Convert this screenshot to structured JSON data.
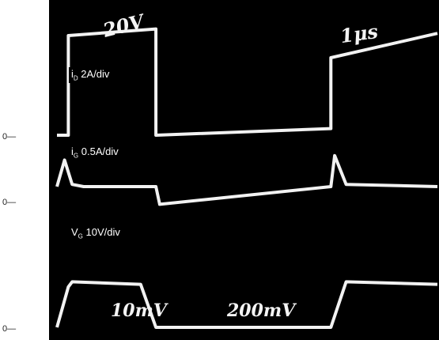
{
  "zero_markers": {
    "id": "0—",
    "ig": "0—",
    "vg": "0—"
  },
  "chart_data": {
    "type": "line",
    "title": "",
    "xlabel": "",
    "ylabel": "",
    "grid": false,
    "background": "#000000",
    "trace_color": "#f2f2f2",
    "series": [
      {
        "name": "iD 2A/div",
        "symbol": "i",
        "subscript": "D",
        "scale": "2A/div",
        "x": [
          0,
          3,
          3,
          26,
          26,
          72,
          72,
          100
        ],
        "values": [
          0,
          0,
          4.5,
          4.8,
          0,
          0.3,
          3.5,
          4.6
        ]
      },
      {
        "name": "iG 0.5A/div",
        "symbol": "i",
        "subscript": "G",
        "scale": "0.5A/div",
        "x": [
          0,
          2,
          4,
          7,
          26,
          27,
          72,
          73,
          76,
          100
        ],
        "values": [
          0,
          1.2,
          0.1,
          0,
          0,
          -0.8,
          0,
          1.4,
          0.1,
          0
        ]
      },
      {
        "name": "VG 10V/div",
        "symbol": "V",
        "subscript": "G",
        "scale": "10V/div",
        "x": [
          0,
          3,
          4,
          22,
          26,
          72,
          76,
          100
        ],
        "values": [
          0,
          1.6,
          1.8,
          1.7,
          0,
          0,
          1.8,
          1.7
        ]
      }
    ],
    "annotations": [
      {
        "text": "20V"
      },
      {
        "text": "1μs"
      },
      {
        "text": "10mV"
      },
      {
        "text": "200mV"
      }
    ]
  }
}
